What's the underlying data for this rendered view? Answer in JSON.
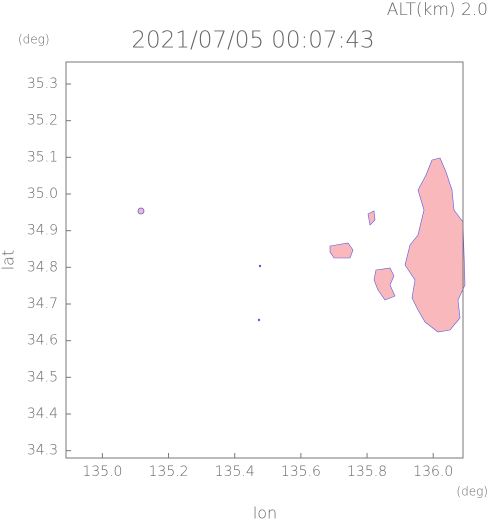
{
  "chart_data": {
    "type": "map",
    "title": "2021/07/05 00:07:43",
    "altitude_label": "ALT(km) 2.0",
    "y_unit": "(deg)",
    "x_unit": "(deg)",
    "xlabel": "lon",
    "ylabel": "lat",
    "xlim": [
      134.89,
      136.09
    ],
    "ylim": [
      34.28,
      35.36
    ],
    "xticks": [
      {
        "value": 135.0,
        "label": "135.0"
      },
      135.2,
      135.4,
      135.6,
      135.8,
      {
        "value": 136.0,
        "label": "136.0"
      }
    ],
    "yticks": [
      34.3,
      34.4,
      34.5,
      34.6,
      34.7,
      34.8,
      34.9,
      {
        "value": 35.0,
        "label": "35.0"
      },
      35.1,
      35.2,
      35.3
    ]
  }
}
